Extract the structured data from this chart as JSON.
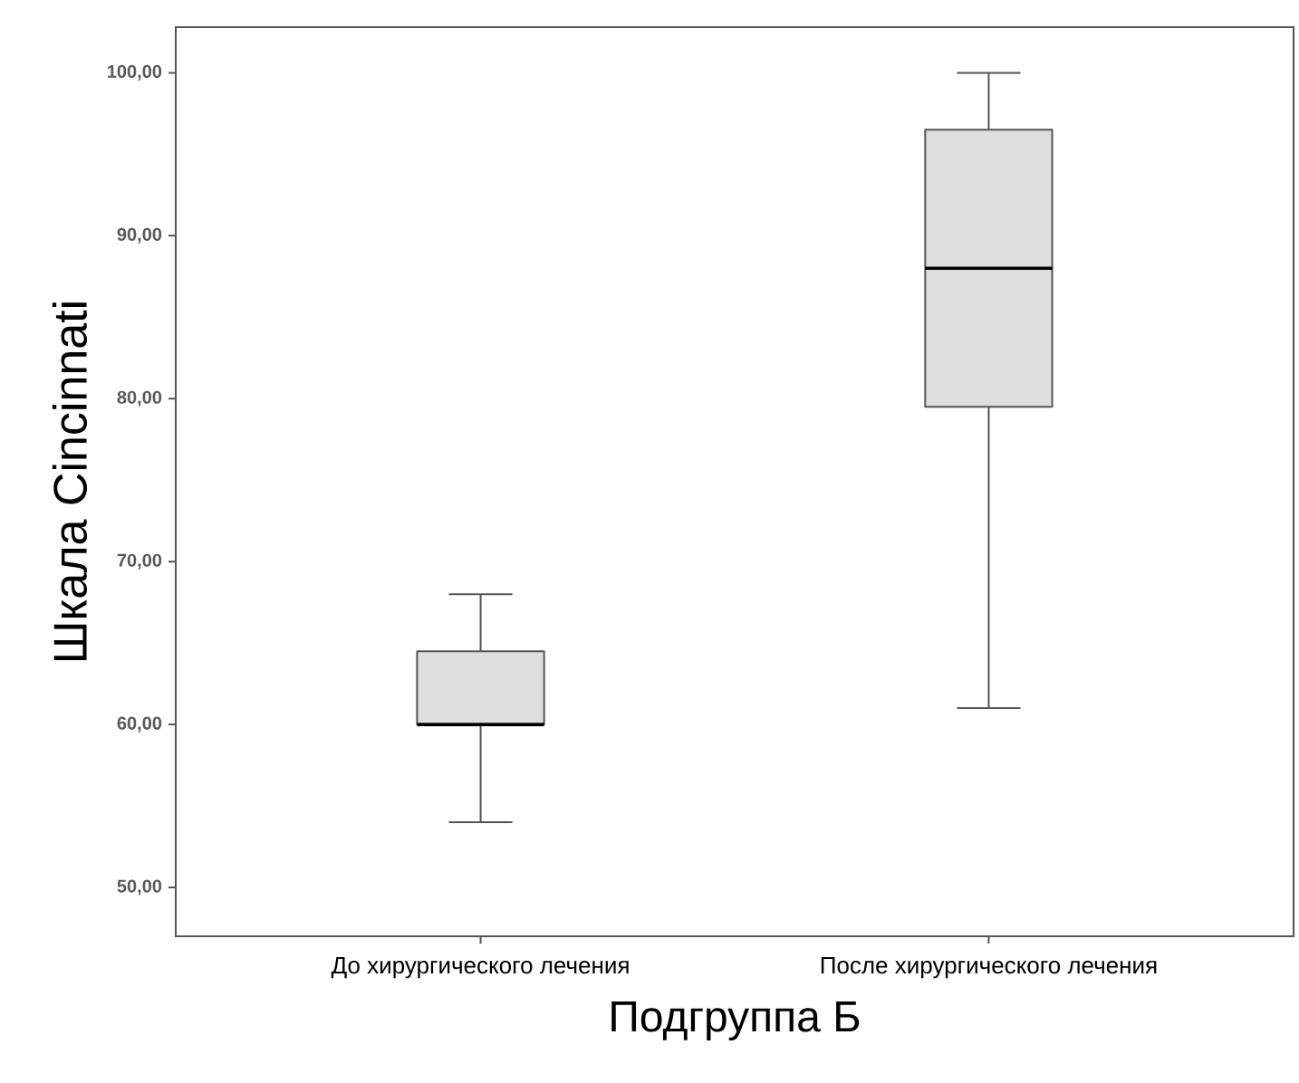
{
  "chart_data": {
    "type": "box",
    "xlabel": "Подгруппа Б",
    "ylabel": "Шкала Cincinnati",
    "categories": [
      "До хирургического лечения",
      "После хирургического лечения"
    ],
    "color": "#dedede",
    "boxes": [
      {
        "low": 54,
        "q1": 60,
        "median": 60,
        "q3": 64.5,
        "high": 68
      },
      {
        "low": 61,
        "q1": 79.5,
        "median": 88,
        "q3": 96.5,
        "high": 100
      }
    ],
    "ylim": [
      47,
      102.8
    ],
    "yticks": [
      {
        "value": 50,
        "label": "50,00"
      },
      {
        "value": 60,
        "label": "60,00"
      },
      {
        "value": 70,
        "label": "70,00"
      },
      {
        "value": 80,
        "label": "80,00"
      },
      {
        "value": 90,
        "label": "90,00"
      },
      {
        "value": 100,
        "label": "100,00"
      }
    ]
  }
}
